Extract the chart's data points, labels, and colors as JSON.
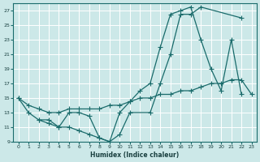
{
  "xlabel": "Humidex (Indice chaleur)",
  "bg_color": "#cce8e8",
  "grid_color": "#aacccc",
  "line_color": "#1a6b6b",
  "xlim": [
    -0.5,
    23.5
  ],
  "ylim": [
    9,
    28
  ],
  "xticks": [
    0,
    1,
    2,
    3,
    4,
    5,
    6,
    7,
    8,
    9,
    10,
    11,
    12,
    13,
    14,
    15,
    16,
    17,
    18,
    19,
    20,
    21,
    22,
    23
  ],
  "yticks": [
    9,
    11,
    13,
    15,
    17,
    19,
    21,
    23,
    25,
    27
  ],
  "line1_x": [
    0,
    1,
    2,
    3,
    4,
    5,
    6,
    7,
    8,
    9,
    10,
    11,
    13,
    14,
    15,
    16,
    17,
    18,
    22
  ],
  "line1_y": [
    15,
    13,
    12,
    11.5,
    11,
    11,
    10.5,
    10,
    9.5,
    9,
    10,
    13,
    13,
    17,
    21,
    26.5,
    26.5,
    27.5,
    26
  ],
  "line2_x": [
    0,
    1,
    2,
    3,
    4,
    5,
    6,
    7,
    8,
    9,
    10,
    11,
    12,
    13,
    14,
    15,
    16,
    17,
    18,
    19,
    20,
    21,
    22,
    23
  ],
  "line2_y": [
    15,
    14,
    13.5,
    13,
    13,
    13.5,
    13.5,
    13.5,
    13.5,
    14,
    14,
    14.5,
    15,
    15,
    15.5,
    15.5,
    16,
    16,
    16.5,
    17,
    17,
    17.5,
    17.5,
    15.5
  ],
  "line3_x": [
    2,
    3,
    4,
    5,
    6,
    7,
    8,
    9,
    10,
    11,
    12,
    13,
    14,
    15,
    16,
    17,
    18,
    19,
    20,
    21,
    22
  ],
  "line3_y": [
    12,
    12,
    11,
    13,
    13,
    12.5,
    9.5,
    9,
    13,
    14.5,
    16,
    17,
    22,
    26.5,
    27,
    27.5,
    23,
    19,
    16,
    23,
    15.5
  ]
}
